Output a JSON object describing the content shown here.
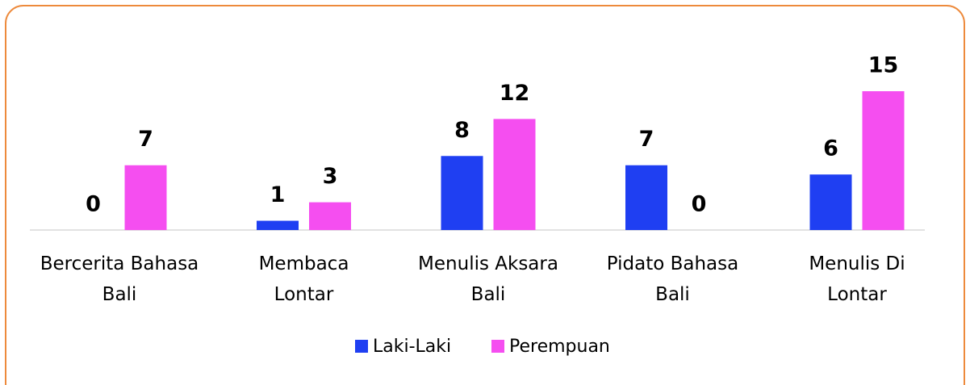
{
  "chart_data": {
    "type": "bar",
    "categories": [
      "Bercerita Bahasa\nBali",
      "Membaca\nLontar",
      "Menulis Aksara\nBali",
      "Pidato Bahasa\nBali",
      "Menulis Di\nLontar"
    ],
    "series": [
      {
        "name": "Laki-Laki",
        "color": "#1f3ff2",
        "values": [
          0,
          1,
          8,
          7,
          6
        ]
      },
      {
        "name": "Perempuan",
        "color": "#f54ef0",
        "values": [
          7,
          3,
          12,
          0,
          15
        ]
      }
    ],
    "legend": "bottom"
  }
}
